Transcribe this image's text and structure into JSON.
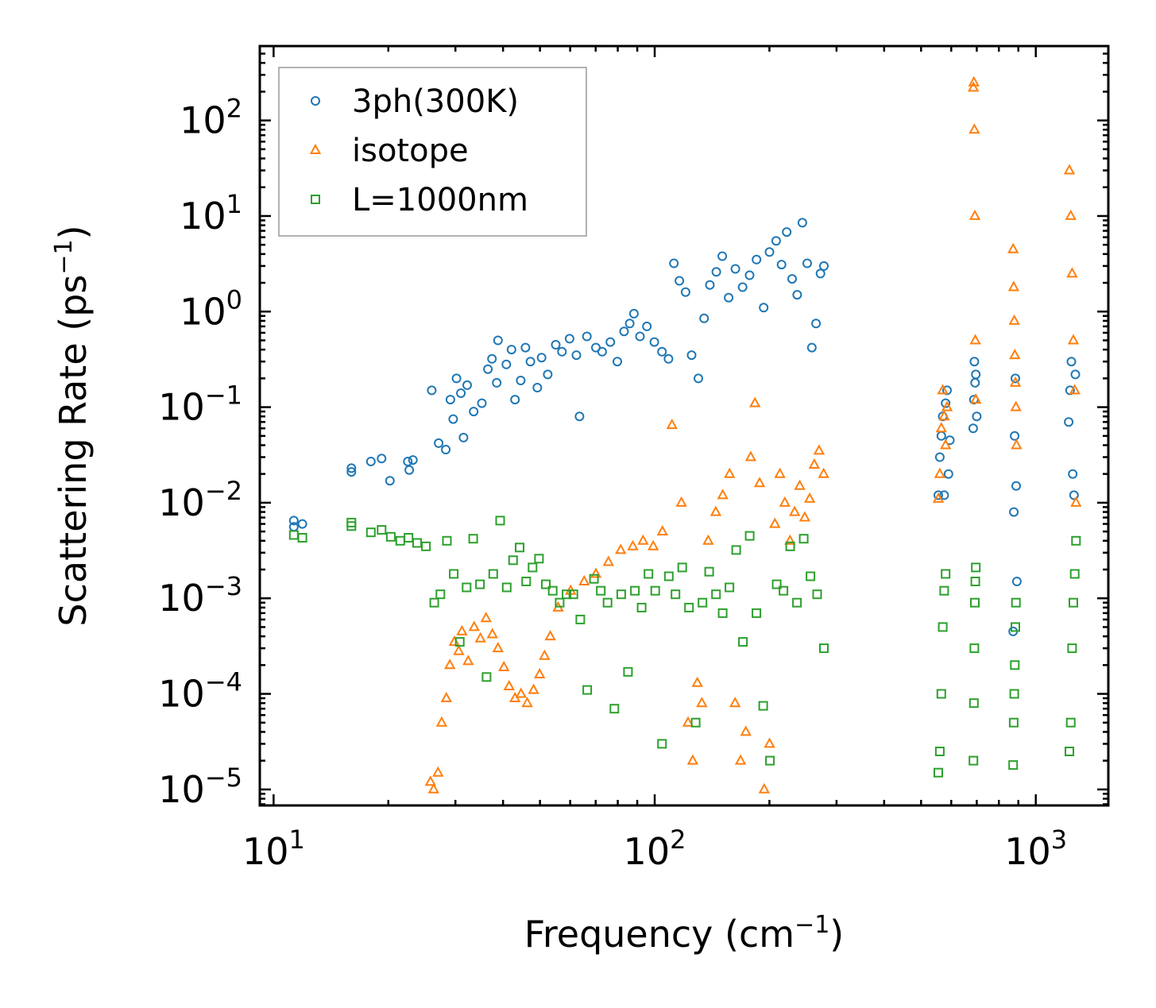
{
  "chart_data": {
    "type": "scatter",
    "title": "",
    "xlabel": "Frequency (cm",
    "xlabel_exp": "−1",
    "xlabel_close": ")",
    "ylabel": "Scattering Rate (ps",
    "ylabel_exp": "−1",
    "ylabel_close": ")",
    "xscale": "log",
    "yscale": "log",
    "xlim": [
      9.2,
      1550
    ],
    "ylim": [
      6.8e-06,
      600
    ],
    "x_ticks": [
      {
        "value": 10,
        "base": "10",
        "exp": "1"
      },
      {
        "value": 100,
        "base": "10",
        "exp": "2"
      },
      {
        "value": 1000,
        "base": "10",
        "exp": "3"
      }
    ],
    "y_ticks": [
      {
        "value": 100,
        "base": "10",
        "exp": "2"
      },
      {
        "value": 10,
        "base": "10",
        "exp": "1"
      },
      {
        "value": 1,
        "base": "10",
        "exp": "0"
      },
      {
        "value": 0.1,
        "base": "10",
        "exp": "−1"
      },
      {
        "value": 0.01,
        "base": "10",
        "exp": "−2"
      },
      {
        "value": 0.001,
        "base": "10",
        "exp": "−3"
      },
      {
        "value": 0.0001,
        "base": "10",
        "exp": "−4"
      },
      {
        "value": 1e-05,
        "base": "10",
        "exp": "−5"
      }
    ],
    "legend_position": "upper-left",
    "series": [
      {
        "name": "3ph(300K)",
        "marker": "circle",
        "color": "#1f77b4",
        "x": [
          11.3,
          11.3,
          11.9,
          16,
          16,
          18,
          19.2,
          20.2,
          22.5,
          22.7,
          23.2,
          26,
          27.1,
          28.3,
          29.1,
          29.6,
          30.2,
          31,
          31.5,
          32.2,
          33.5,
          35.2,
          36.5,
          37.4,
          38.5,
          38.8,
          40.8,
          42.1,
          43,
          44.5,
          45.8,
          47.2,
          49.2,
          50.5,
          52.4,
          55,
          57.1,
          59.8,
          62.3,
          63.5,
          66.4,
          70.1,
          72.8,
          76.5,
          79.8,
          83.1,
          86,
          88.2,
          91.5,
          95.4,
          99.8,
          104.5,
          108.7,
          112.3,
          116.1,
          120.5,
          125,
          130.2,
          134.8,
          139.6,
          145.1,
          150.4,
          156.3,
          162.8,
          170.1,
          177.4,
          185,
          193.2,
          200.1,
          208.3,
          215.2,
          222,
          229.4,
          236.5,
          244.1,
          251.3,
          258.4,
          265,
          272.3,
          278,
          555,
          560,
          565,
          570,
          575,
          580,
          585,
          590,
          595,
          685,
          688,
          690,
          693,
          696,
          700,
          872,
          876,
          880,
          884,
          888,
          892,
          1220,
          1230,
          1240,
          1250,
          1260,
          1270
        ],
        "y": [
          0.0065,
          0.0056,
          0.006,
          0.023,
          0.021,
          0.027,
          0.029,
          0.017,
          0.027,
          0.022,
          0.028,
          0.15,
          0.042,
          0.036,
          0.12,
          0.075,
          0.2,
          0.14,
          0.048,
          0.17,
          0.09,
          0.11,
          0.25,
          0.32,
          0.18,
          0.5,
          0.28,
          0.4,
          0.12,
          0.19,
          0.42,
          0.3,
          0.16,
          0.33,
          0.22,
          0.45,
          0.38,
          0.52,
          0.35,
          0.08,
          0.55,
          0.42,
          0.38,
          0.48,
          0.3,
          0.62,
          0.75,
          0.95,
          0.55,
          0.7,
          0.48,
          0.38,
          0.32,
          3.2,
          2.1,
          1.6,
          0.35,
          0.2,
          0.85,
          1.9,
          2.6,
          3.8,
          1.4,
          2.8,
          1.8,
          2.4,
          3.5,
          1.1,
          4.2,
          5.5,
          3.1,
          6.8,
          2.2,
          1.5,
          8.5,
          3.2,
          0.42,
          0.75,
          2.5,
          3,
          0.012,
          0.03,
          0.05,
          0.08,
          0.012,
          0.11,
          0.15,
          0.02,
          0.045,
          0.06,
          0.12,
          0.3,
          0.18,
          0.22,
          0.08,
          0.00045,
          0.008,
          0.05,
          0.2,
          0.015,
          0.0015,
          0.07,
          0.15,
          0.3,
          0.02,
          0.012,
          0.22
        ]
      },
      {
        "name": "isotope",
        "marker": "triangle",
        "color": "#ff7f0e",
        "x": [
          25.8,
          26.3,
          27,
          27.6,
          28.4,
          29,
          29.8,
          30.6,
          31.2,
          32.4,
          33.6,
          34.9,
          36.1,
          37.5,
          38.8,
          40.2,
          41.5,
          43,
          44.6,
          46.3,
          48.1,
          49.9,
          51.4,
          53.2,
          55.8,
          60.2,
          65.3,
          70.1,
          75.6,
          81.4,
          87.6,
          93.2,
          99.1,
          104.8,
          111,
          117.5,
          122.3,
          125.8,
          129.4,
          133,
          138.2,
          144.6,
          150.9,
          157.2,
          162.5,
          168,
          173.4,
          178.6,
          183.2,
          188.5,
          193.8,
          200.2,
          206.7,
          213.1,
          219.5,
          226.4,
          233,
          240.2,
          247.6,
          255.1,
          262.3,
          270,
          277.5,
          555,
          560,
          565,
          570,
          575,
          580,
          585,
          686,
          688,
          690,
          692,
          694,
          696,
          872,
          875,
          878,
          881,
          884,
          887,
          890,
          1225,
          1235,
          1245,
          1255,
          1265,
          1275
        ],
        "y": [
          1.2e-05,
          1e-05,
          1.5e-05,
          5e-05,
          9e-05,
          0.0002,
          0.00035,
          0.00028,
          0.00045,
          0.00022,
          0.0005,
          0.00038,
          0.00062,
          0.00042,
          0.0003,
          0.00019,
          0.00012,
          9e-05,
          0.0001,
          8e-05,
          0.00011,
          0.00016,
          0.00025,
          0.0004,
          0.0008,
          0.0012,
          0.0015,
          0.0018,
          0.0024,
          0.0032,
          0.0035,
          0.004,
          0.0035,
          0.005,
          0.065,
          0.01,
          5e-05,
          2e-05,
          0.00013,
          8e-05,
          0.004,
          0.008,
          0.012,
          0.02,
          8e-05,
          2e-05,
          4e-05,
          0.03,
          0.11,
          0.016,
          1e-05,
          3e-05,
          0.006,
          0.02,
          0.01,
          0.004,
          0.008,
          0.015,
          0.007,
          0.011,
          0.025,
          0.035,
          0.02,
          0.011,
          0.02,
          0.06,
          0.15,
          0.08,
          0.04,
          0.1,
          220,
          250,
          80,
          10,
          0.5,
          0.12,
          4.5,
          1.8,
          0.8,
          0.35,
          0.18,
          0.1,
          0.04,
          30,
          10,
          2.5,
          0.5,
          0.15,
          0.01
        ]
      },
      {
        "name": "L=1000nm",
        "marker": "square",
        "color": "#2ca02c",
        "x": [
          11.3,
          11.9,
          16,
          16,
          18,
          19.2,
          20.3,
          21.5,
          22.6,
          23.8,
          25.1,
          26.4,
          27.4,
          28.5,
          29.7,
          30.8,
          32.1,
          33.4,
          34.8,
          36.2,
          37.7,
          39.3,
          40.9,
          42.5,
          44.2,
          46,
          47.8,
          49.7,
          51.8,
          54,
          56.3,
          58.7,
          61.2,
          63.8,
          66.5,
          69.3,
          72.2,
          75.2,
          78.4,
          81.7,
          85.1,
          88.7,
          92.4,
          96.3,
          100.3,
          104.5,
          108.9,
          113.4,
          118.1,
          123,
          128.1,
          133.5,
          139,
          144.8,
          150.8,
          157.1,
          163.6,
          170.4,
          177.5,
          184.9,
          192.6,
          200.6,
          209,
          217.7,
          226.8,
          236.2,
          246,
          256.3,
          266.9,
          278,
          555,
          560,
          565,
          570,
          575,
          580,
          686,
          688,
          690,
          692,
          694,
          696,
          872,
          875,
          878,
          881,
          884,
          887,
          1225,
          1235,
          1245,
          1255,
          1265,
          1275
        ],
        "y": [
          0.0046,
          0.0043,
          0.0057,
          0.0062,
          0.0049,
          0.0052,
          0.0044,
          0.004,
          0.0043,
          0.0038,
          0.0035,
          0.0009,
          0.0011,
          0.004,
          0.0018,
          0.00035,
          0.0013,
          0.0042,
          0.0014,
          0.00015,
          0.0018,
          0.0065,
          0.0013,
          0.0025,
          0.0034,
          0.0015,
          0.0021,
          0.0026,
          0.0014,
          0.0012,
          0.0009,
          0.0011,
          0.0011,
          0.0006,
          0.00011,
          0.0016,
          0.0012,
          0.0009,
          7e-05,
          0.0011,
          0.00017,
          0.0012,
          0.0008,
          0.0018,
          0.0012,
          3e-05,
          0.0017,
          0.0011,
          0.0021,
          0.0008,
          5e-05,
          0.0009,
          0.0019,
          0.0011,
          0.0007,
          0.0013,
          0.0032,
          0.00035,
          0.0045,
          0.0007,
          7.5e-05,
          2e-05,
          0.0014,
          0.0012,
          0.0035,
          0.0009,
          0.0042,
          0.0017,
          0.0011,
          0.0003,
          1.5e-05,
          2.5e-05,
          0.0001,
          0.0005,
          0.0012,
          0.0018,
          2e-05,
          8e-05,
          0.0003,
          0.0009,
          0.0015,
          0.0021,
          1.8e-05,
          5e-05,
          0.0001,
          0.0002,
          0.0005,
          0.0009,
          2.5e-05,
          5e-05,
          0.0003,
          0.0009,
          0.0018,
          0.004
        ]
      }
    ]
  }
}
